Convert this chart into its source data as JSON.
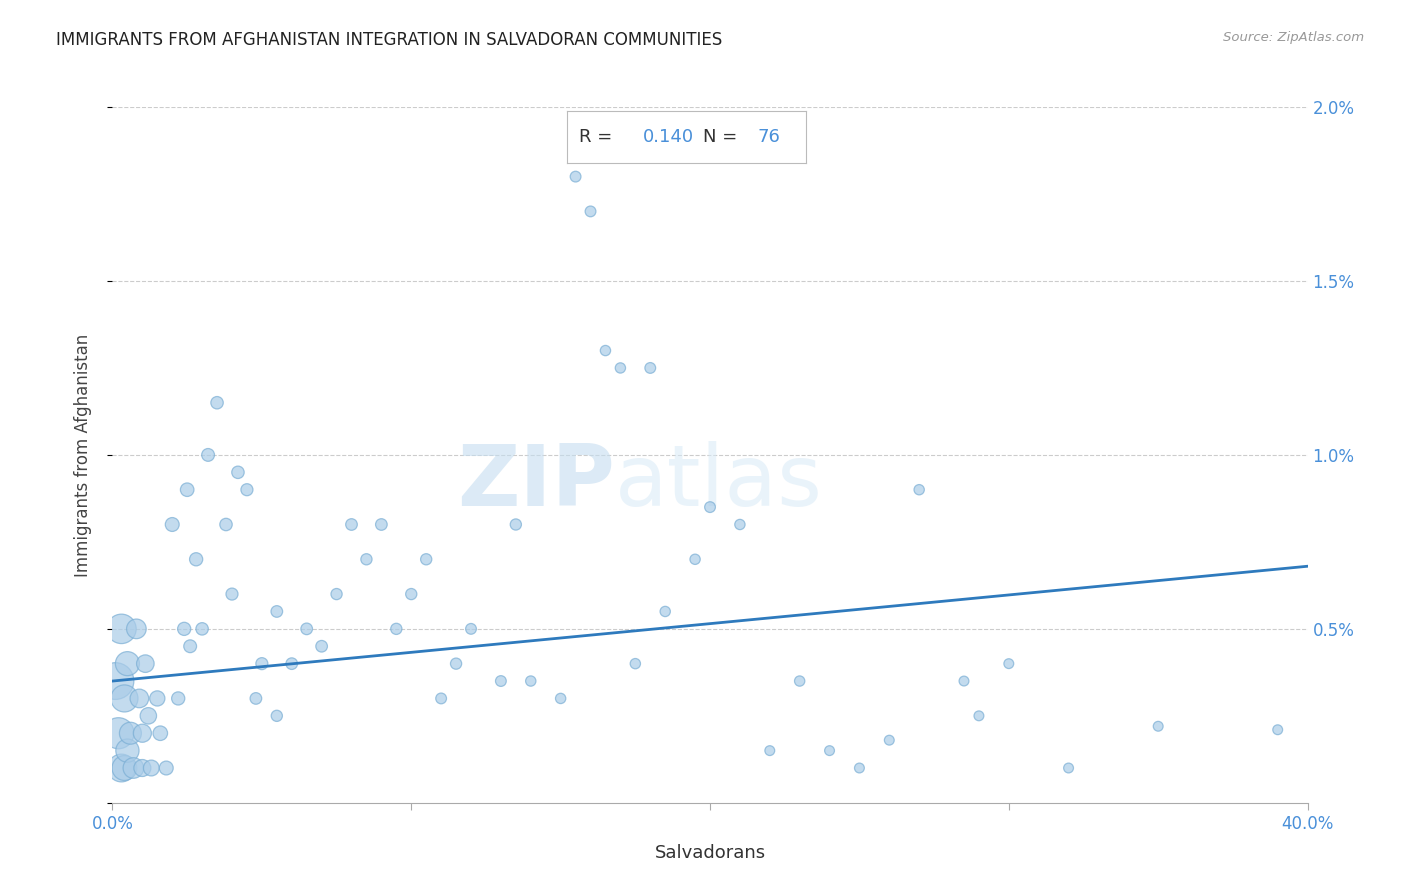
{
  "title": "IMMIGRANTS FROM AFGHANISTAN INTEGRATION IN SALVADORAN COMMUNITIES",
  "source": "Source: ZipAtlas.com",
  "xlabel": "Salvadorans",
  "ylabel": "Immigrants from Afghanistan",
  "xlim": [
    0.0,
    0.4
  ],
  "ylim": [
    0.0,
    0.02
  ],
  "xtick_positions": [
    0.0,
    0.1,
    0.2,
    0.3,
    0.4
  ],
  "xtick_labels": [
    "0.0%",
    "",
    "",
    "",
    "40.0%"
  ],
  "ytick_positions": [
    0.0,
    0.005,
    0.01,
    0.015,
    0.02
  ],
  "ytick_labels": [
    "",
    "0.5%",
    "1.0%",
    "1.5%",
    "2.0%"
  ],
  "R": "0.140",
  "N": "76",
  "scatter_color": "#aacce8",
  "scatter_edge_color": "#7aaed4",
  "line_color": "#2e7abd",
  "watermark_zip": "ZIP",
  "watermark_atlas": "atlas",
  "background_color": "#ffffff",
  "line_y_start": 0.0035,
  "line_y_end": 0.0068,
  "scatter_x": [
    0.001,
    0.002,
    0.003,
    0.003,
    0.004,
    0.004,
    0.005,
    0.005,
    0.006,
    0.007,
    0.008,
    0.009,
    0.01,
    0.01,
    0.011,
    0.012,
    0.013,
    0.015,
    0.016,
    0.018,
    0.02,
    0.022,
    0.024,
    0.025,
    0.026,
    0.028,
    0.03,
    0.032,
    0.035,
    0.038,
    0.04,
    0.042,
    0.045,
    0.048,
    0.05,
    0.055,
    0.055,
    0.06,
    0.065,
    0.07,
    0.075,
    0.08,
    0.085,
    0.09,
    0.095,
    0.1,
    0.105,
    0.11,
    0.115,
    0.12,
    0.13,
    0.135,
    0.14,
    0.15,
    0.155,
    0.16,
    0.165,
    0.17,
    0.175,
    0.18,
    0.185,
    0.195,
    0.2,
    0.21,
    0.22,
    0.23,
    0.24,
    0.25,
    0.26,
    0.27,
    0.285,
    0.29,
    0.3,
    0.32,
    0.35,
    0.39
  ],
  "scatter_y": [
    0.0035,
    0.002,
    0.005,
    0.001,
    0.003,
    0.001,
    0.004,
    0.0015,
    0.002,
    0.001,
    0.005,
    0.003,
    0.002,
    0.001,
    0.004,
    0.0025,
    0.001,
    0.003,
    0.002,
    0.001,
    0.008,
    0.003,
    0.005,
    0.009,
    0.0045,
    0.007,
    0.005,
    0.01,
    0.0115,
    0.008,
    0.006,
    0.0095,
    0.009,
    0.003,
    0.004,
    0.0055,
    0.0025,
    0.004,
    0.005,
    0.0045,
    0.006,
    0.008,
    0.007,
    0.008,
    0.005,
    0.006,
    0.007,
    0.003,
    0.004,
    0.005,
    0.0035,
    0.008,
    0.0035,
    0.003,
    0.018,
    0.017,
    0.013,
    0.0125,
    0.004,
    0.0125,
    0.0055,
    0.007,
    0.0085,
    0.008,
    0.0015,
    0.0035,
    0.0015,
    0.001,
    0.0018,
    0.009,
    0.0035,
    0.0025,
    0.004,
    0.001,
    0.0022,
    0.0021
  ],
  "scatter_sizes": [
    700,
    500,
    450,
    400,
    380,
    320,
    300,
    280,
    250,
    220,
    200,
    180,
    170,
    150,
    160,
    140,
    130,
    120,
    110,
    100,
    100,
    90,
    90,
    95,
    85,
    90,
    80,
    85,
    80,
    80,
    75,
    80,
    75,
    70,
    75,
    70,
    65,
    70,
    70,
    70,
    65,
    70,
    65,
    70,
    65,
    65,
    65,
    60,
    65,
    60,
    60,
    65,
    55,
    55,
    60,
    60,
    55,
    55,
    55,
    60,
    55,
    55,
    60,
    55,
    50,
    55,
    50,
    50,
    50,
    55,
    50,
    50,
    50,
    50,
    50,
    50
  ]
}
